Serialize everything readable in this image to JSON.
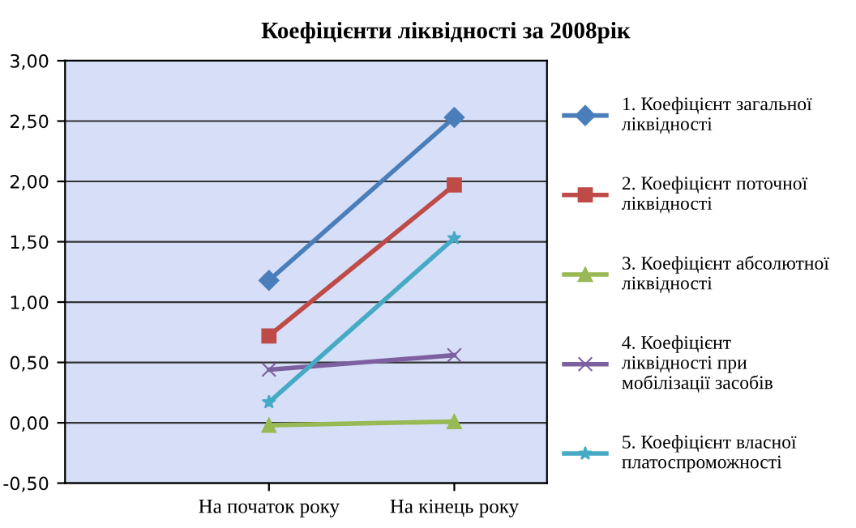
{
  "chart_data": {
    "type": "line",
    "title": "Коефіцієнти ліквідності за 2008рік",
    "categories": [
      "На початок року",
      "На кінець року"
    ],
    "series": [
      {
        "name": "1. Коефіцієнт загальної ліквідності",
        "color": "#4a7ebb",
        "marker": "diamond",
        "values": [
          1.18,
          2.53
        ]
      },
      {
        "name": "2. Коефіцієнт поточної ліквідності",
        "color": "#be4b48",
        "marker": "square",
        "values": [
          0.72,
          1.97
        ]
      },
      {
        "name": "3. Коефіцієнт абсолютної ліквідності",
        "color": "#98b954",
        "marker": "triangle",
        "values": [
          -0.02,
          0.01
        ]
      },
      {
        "name": "4. Коефіцієнт ліквідності при мобілізації засобів",
        "color": "#7d60a0",
        "marker": "cross",
        "values": [
          0.44,
          0.56
        ]
      },
      {
        "name": "5. Коефіцієнт власної платоспроможності",
        "color": "#46aac5",
        "marker": "star",
        "values": [
          0.17,
          1.53
        ]
      }
    ],
    "ylim": [
      -0.5,
      3.0
    ],
    "yticks": [
      {
        "value": -0.5,
        "label": "-0,50"
      },
      {
        "value": 0,
        "label": "0,00"
      },
      {
        "value": 0.5,
        "label": "0,50"
      },
      {
        "value": 1.0,
        "label": "1,00"
      },
      {
        "value": 1.5,
        "label": "1,50"
      },
      {
        "value": 2.0,
        "label": "2,00"
      },
      {
        "value": 2.5,
        "label": "2,50"
      },
      {
        "value": 3.0,
        "label": "3,00"
      }
    ],
    "grid": "y",
    "legend": "right",
    "line_style": "solid"
  }
}
